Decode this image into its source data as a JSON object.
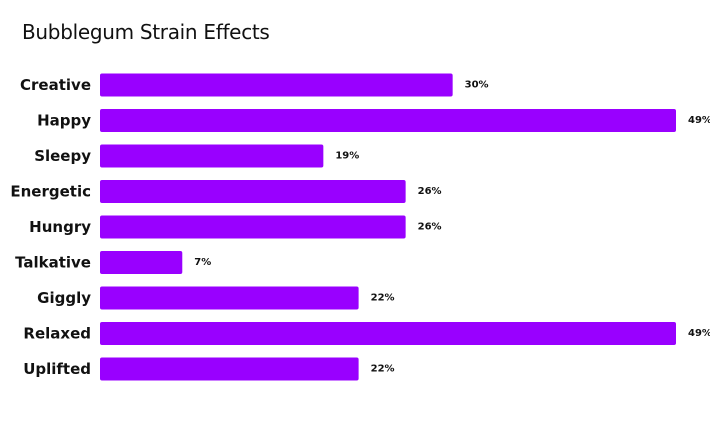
{
  "chart_data": {
    "type": "bar",
    "orientation": "horizontal",
    "title": "Bubblegum Strain Effects",
    "categories": [
      "Creative",
      "Happy",
      "Sleepy",
      "Energetic",
      "Hungry",
      "Talkative",
      "Giggly",
      "Relaxed",
      "Uplifted"
    ],
    "values": [
      30,
      49,
      19,
      26,
      26,
      7,
      22,
      49,
      22
    ],
    "labels": [
      "30%",
      "49%",
      "19%",
      "26%",
      "26%",
      "7%",
      "22%",
      "49%",
      "22%"
    ],
    "unit": "%",
    "xlim": [
      0,
      49
    ],
    "bar_color": "#9900ff",
    "grid": false,
    "legend": "none"
  }
}
